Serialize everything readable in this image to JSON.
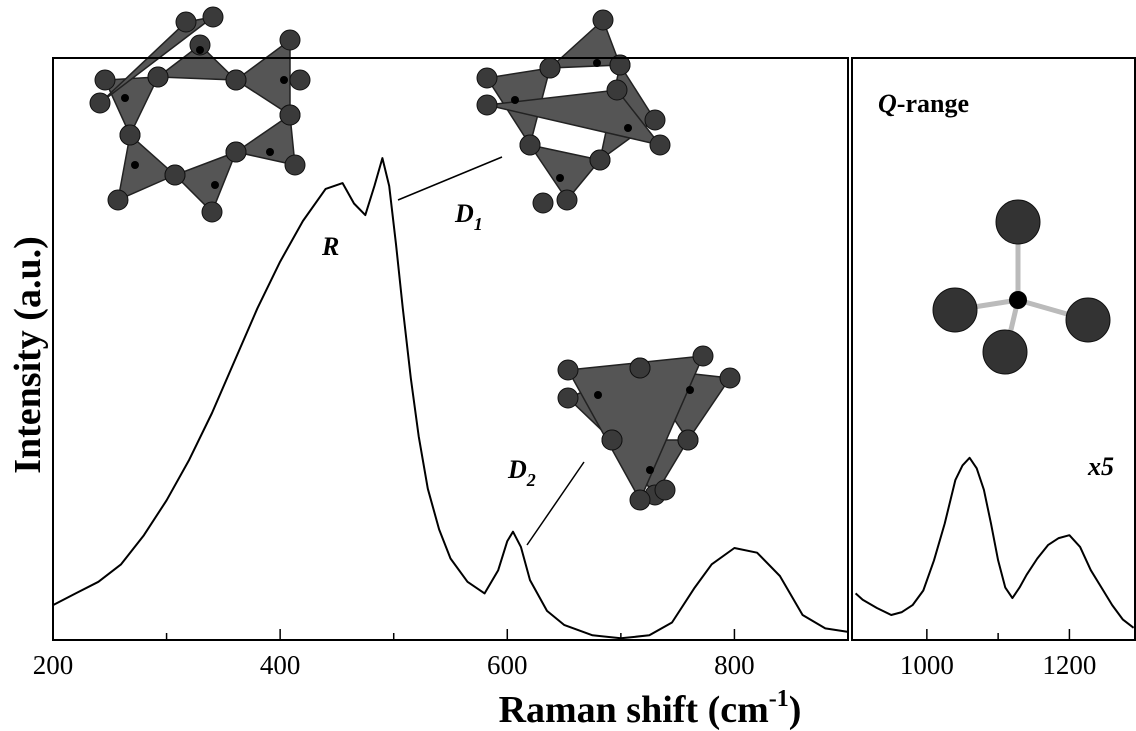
{
  "chart_data": [
    {
      "type": "line",
      "y_label": "Intensity (a.u.)",
      "x_label": {
        "text": "Raman shift (cm",
        "sup": "-1",
        "suffix": ")"
      },
      "xlim": [
        200,
        900
      ],
      "ylim": [
        0,
        100
      ],
      "xticks": [
        200,
        400,
        600,
        800
      ],
      "xminor": [
        300,
        500,
        700
      ],
      "color": "#000000",
      "x": [
        200,
        220,
        240,
        260,
        280,
        300,
        320,
        340,
        360,
        380,
        400,
        420,
        440,
        455,
        465,
        475,
        483,
        490,
        496,
        502,
        508,
        515,
        522,
        530,
        540,
        550,
        565,
        580,
        592,
        600,
        605,
        612,
        620,
        635,
        650,
        675,
        700,
        725,
        745,
        765,
        780,
        800,
        820,
        840,
        860,
        880,
        900
      ],
      "values": [
        6,
        8,
        10,
        13,
        18,
        24,
        31,
        39,
        48,
        57,
        65,
        72,
        77.5,
        78.5,
        75,
        73,
        78,
        82.8,
        78,
        68,
        57,
        45,
        35,
        26,
        19,
        14,
        10,
        8,
        12,
        17,
        18.6,
        16,
        10.3,
        5,
        2.6,
        0.8,
        0.3,
        0.8,
        3,
        9,
        13,
        15.8,
        15,
        11,
        4.3,
        2,
        1.4
      ],
      "annotations": [
        {
          "text": "R"
        },
        {
          "text": "D",
          "sub": "1"
        },
        {
          "text": "D",
          "sub": "2"
        }
      ]
    },
    {
      "type": "line",
      "xlim": [
        895,
        1292
      ],
      "ylim": [
        0,
        100
      ],
      "xticks": [
        1000,
        1200
      ],
      "xminor": [
        1100
      ],
      "color": "#000000",
      "x": [
        900,
        910,
        930,
        950,
        965,
        980,
        995,
        1010,
        1025,
        1040,
        1050,
        1060,
        1070,
        1080,
        1090,
        1100,
        1110,
        1120,
        1130,
        1140,
        1155,
        1170,
        1185,
        1200,
        1215,
        1230,
        1245,
        1260,
        1275,
        1290
      ],
      "values": [
        8,
        6.9,
        5.5,
        4.3,
        4.8,
        6,
        8.5,
        13.7,
        20,
        27.5,
        30,
        31.3,
        29.5,
        25.8,
        20,
        13.7,
        9,
        7.2,
        9,
        11.2,
        14,
        16.3,
        17.5,
        18,
        16,
        12,
        9,
        6,
        3.5,
        2.1
      ],
      "annotations": [
        {
          "text": "Q",
          "suffix": "-range"
        },
        {
          "text": "x5"
        }
      ]
    }
  ]
}
